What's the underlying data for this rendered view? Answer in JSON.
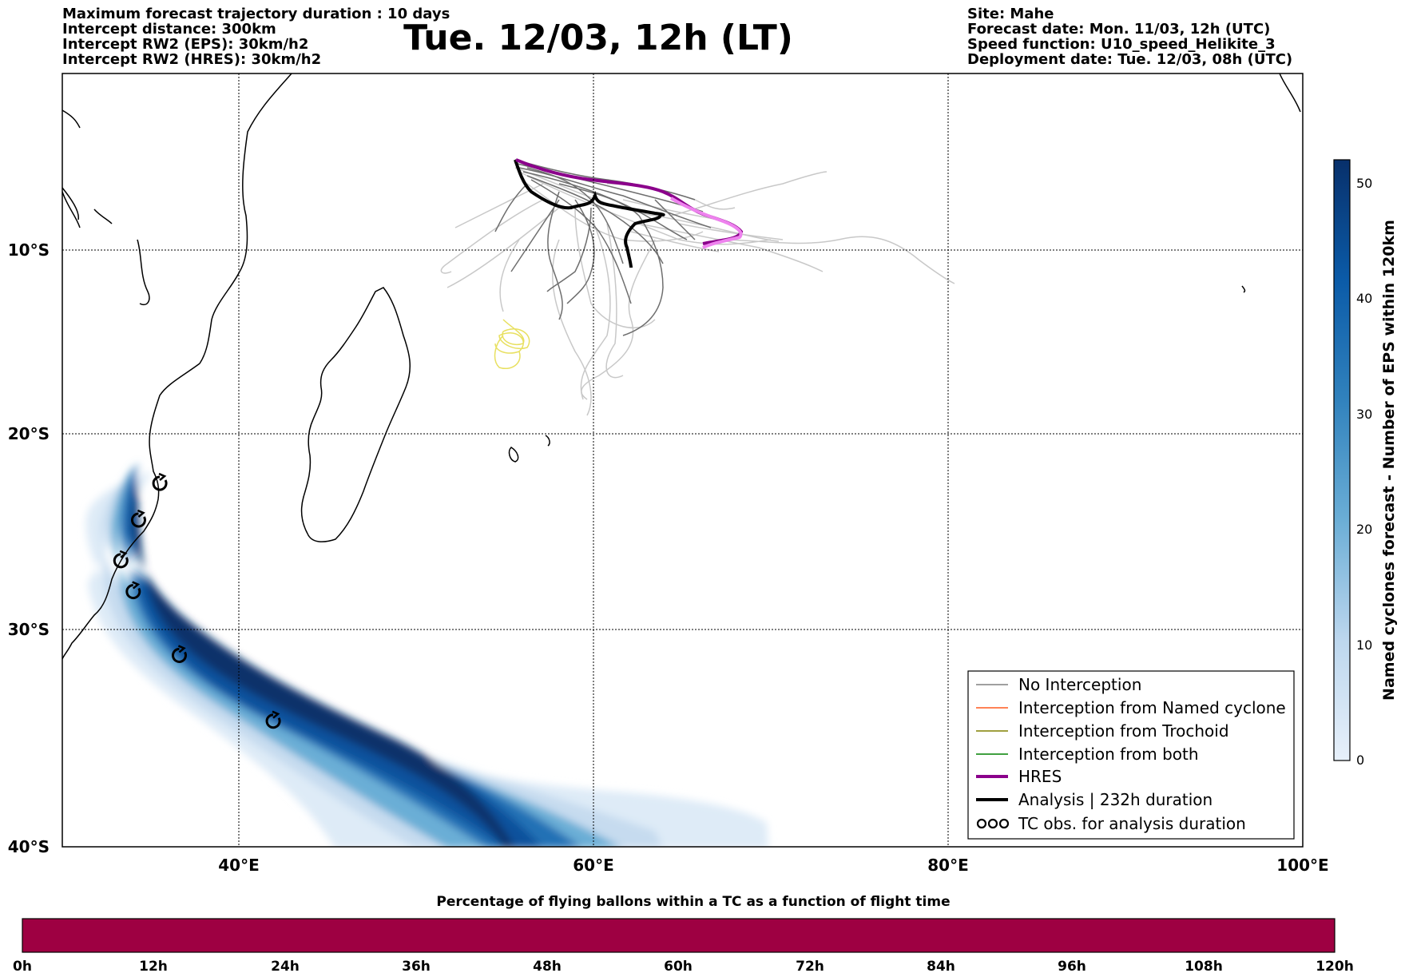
{
  "header": {
    "left_lines": [
      "Maximum forecast trajectory duration : 10 days",
      "Intercept distance: 300km",
      "Intercept RW2 (EPS):  30km/h2",
      "Intercept RW2 (HRES): 30km/h2"
    ],
    "title": "Tue. 12/03, 12h (LT)",
    "right_lines": [
      "Site: Mahe",
      "Forecast date: Mon. 11/03, 12h (UTC)",
      "Speed function: U10_speed_Helikite_3",
      "Deployment date: Tue. 12/03, 08h (UTC)"
    ]
  },
  "map": {
    "lon_range": [
      30,
      100
    ],
    "lat_range": [
      -40,
      0
    ],
    "lon_ticks": [
      "40°E",
      "60°E",
      "80°E",
      "100°E"
    ],
    "lat_ticks": [
      "10°S",
      "20°S",
      "30°S",
      "40°S"
    ],
    "gridlines": true
  },
  "legend": {
    "entries": [
      {
        "label": "No Interception",
        "color": "#808080"
      },
      {
        "label": "Interception from Named cyclone",
        "color": "#ff5a1e"
      },
      {
        "label": "Interception from Trochoid",
        "color": "#808000"
      },
      {
        "label": "Interception from both",
        "color": "#008000"
      },
      {
        "label": "HRES",
        "color": "#8b008b"
      },
      {
        "label": "Analysis | 232h duration",
        "color": "#000000"
      },
      {
        "label": "TC obs. for analysis duration",
        "color": "#000000"
      }
    ]
  },
  "colorbar_right": {
    "label": "Named cyclones forecast - Number of EPS within 120km",
    "ticks": [
      "0",
      "10",
      "20",
      "30",
      "40",
      "50"
    ],
    "range": [
      0,
      52
    ]
  },
  "colorbar_bottom": {
    "title": "Percentage of flying ballons within a TC as a function of flight time",
    "ticks": [
      "0h",
      "12h",
      "24h",
      "36h",
      "48h",
      "60h",
      "72h",
      "84h",
      "96h",
      "108h",
      "120h"
    ],
    "fill_color": "#9e0042"
  },
  "colors": {
    "density_light": "#deebf7",
    "density_dark": "#08306b",
    "hres_track": "#8b008b",
    "hres_track_late": "#ee82ee",
    "ensemble_dark": "#6e6e6e",
    "ensemble_light": "#c8c8c8",
    "yellow_track": "#e8e060"
  },
  "chart_data": {
    "type": "map",
    "tc_observations_lonlat": [
      [
        35.5,
        -21.2
      ],
      [
        34.3,
        -23.1
      ],
      [
        33.3,
        -25.2
      ],
      [
        34.0,
        -26.8
      ],
      [
        36.6,
        -30.1
      ],
      [
        41.9,
        -33.5
      ]
    ],
    "hres_track_lonlat": [
      [
        55.7,
        -4.6
      ],
      [
        56.5,
        -5.3
      ],
      [
        58,
        -5.6
      ],
      [
        60,
        -5.8
      ],
      [
        62,
        -5.7
      ],
      [
        63.5,
        -6.2
      ],
      [
        65,
        -7.0
      ],
      [
        66.5,
        -7.6
      ],
      [
        67.8,
        -8.4
      ],
      [
        68.3,
        -8.9
      ],
      [
        67.6,
        -9.4
      ],
      [
        66.3,
        -9.8
      ]
    ],
    "analysis_track_lonlat": [
      [
        55.7,
        -4.6
      ],
      [
        56.0,
        -5.6
      ],
      [
        57.0,
        -6.4
      ],
      [
        58.5,
        -7.2
      ],
      [
        60.0,
        -7.0
      ],
      [
        60.5,
        -6.6
      ],
      [
        61,
        -7.3
      ],
      [
        62.3,
        -7.7
      ],
      [
        63.5,
        -8.0
      ],
      [
        64.0,
        -7.7
      ],
      [
        63.3,
        -8.2
      ],
      [
        62.0,
        -8.6
      ],
      [
        61.8,
        -9.8
      ],
      [
        62.1,
        -10.7
      ]
    ]
  }
}
